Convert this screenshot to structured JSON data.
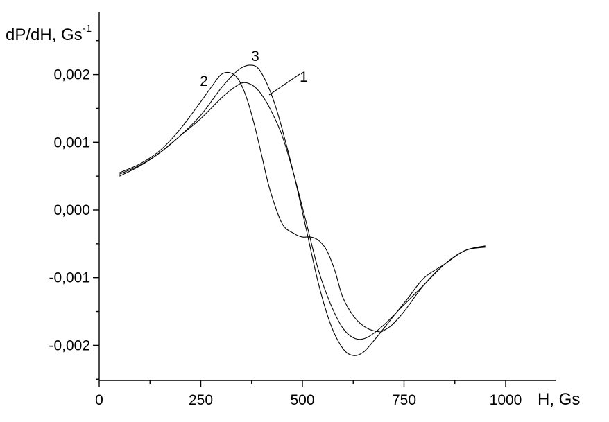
{
  "chart_data": {
    "type": "line",
    "xlabel": "H, Gs",
    "ylabel_main": "dP/dH, Gs",
    "ylabel_sup": "-1",
    "xlim": [
      0,
      1125
    ],
    "ylim": [
      -0.0025,
      0.0028
    ],
    "x_ticks": [
      0,
      250,
      500,
      750,
      1000
    ],
    "x_tick_labels": [
      "0",
      "250",
      "500",
      "750",
      "1000"
    ],
    "y_ticks": [
      0.002,
      0.001,
      0.0,
      -0.001,
      -0.002
    ],
    "y_tick_labels": [
      "0,002",
      "0,001",
      "0,000",
      "-0,001",
      "-0,002"
    ],
    "grid": false,
    "series": [
      {
        "name": "1",
        "x": [
          50,
          100,
          150,
          200,
          250,
          300,
          330,
          355,
          380,
          400,
          420,
          450,
          480,
          510,
          540,
          570,
          600,
          630,
          660,
          700,
          750,
          800,
          850,
          900,
          950
        ],
        "y": [
          0.0005,
          0.00065,
          0.00085,
          0.0011,
          0.00135,
          0.00165,
          0.0018,
          0.00188,
          0.00183,
          0.0017,
          0.0015,
          0.0011,
          0.0005,
          -0.0002,
          -0.0009,
          -0.0014,
          -0.00175,
          -0.0019,
          -0.00188,
          -0.0017,
          -0.0014,
          -0.0011,
          -0.0008,
          -0.0006,
          -0.00054
        ]
      },
      {
        "name": "2",
        "x": [
          50,
          100,
          150,
          200,
          250,
          280,
          300,
          320,
          340,
          360,
          380,
          400,
          420,
          450,
          480,
          500,
          520,
          540,
          560,
          580,
          600,
          630,
          660,
          690,
          700,
          720,
          750,
          800,
          850,
          900,
          950
        ],
        "y": [
          0.00055,
          0.00068,
          0.00088,
          0.0012,
          0.0016,
          0.00185,
          0.002,
          0.00203,
          0.00195,
          0.0017,
          0.0013,
          0.0008,
          0.0003,
          -0.0002,
          -0.00035,
          -0.0004,
          -0.0004,
          -0.00045,
          -0.0006,
          -0.0009,
          -0.0013,
          -0.0016,
          -0.00175,
          -0.0018,
          -0.00178,
          -0.0017,
          -0.0015,
          -0.0011,
          -0.0008,
          -0.0006,
          -0.00053
        ]
      },
      {
        "name": "3",
        "x": [
          50,
          100,
          150,
          200,
          250,
          300,
          330,
          350,
          370,
          390,
          410,
          430,
          450,
          480,
          510,
          540,
          570,
          600,
          625,
          650,
          680,
          720,
          760,
          800,
          850,
          900,
          950
        ],
        "y": [
          0.00053,
          0.00066,
          0.00085,
          0.0011,
          0.0014,
          0.0018,
          0.002,
          0.0021,
          0.00214,
          0.0021,
          0.0019,
          0.0016,
          0.0012,
          0.0005,
          -0.0003,
          -0.0011,
          -0.0017,
          -0.00205,
          -0.00215,
          -0.0021,
          -0.0019,
          -0.0016,
          -0.0013,
          -0.001,
          -0.0008,
          -0.0006,
          -0.00055
        ]
      }
    ]
  }
}
